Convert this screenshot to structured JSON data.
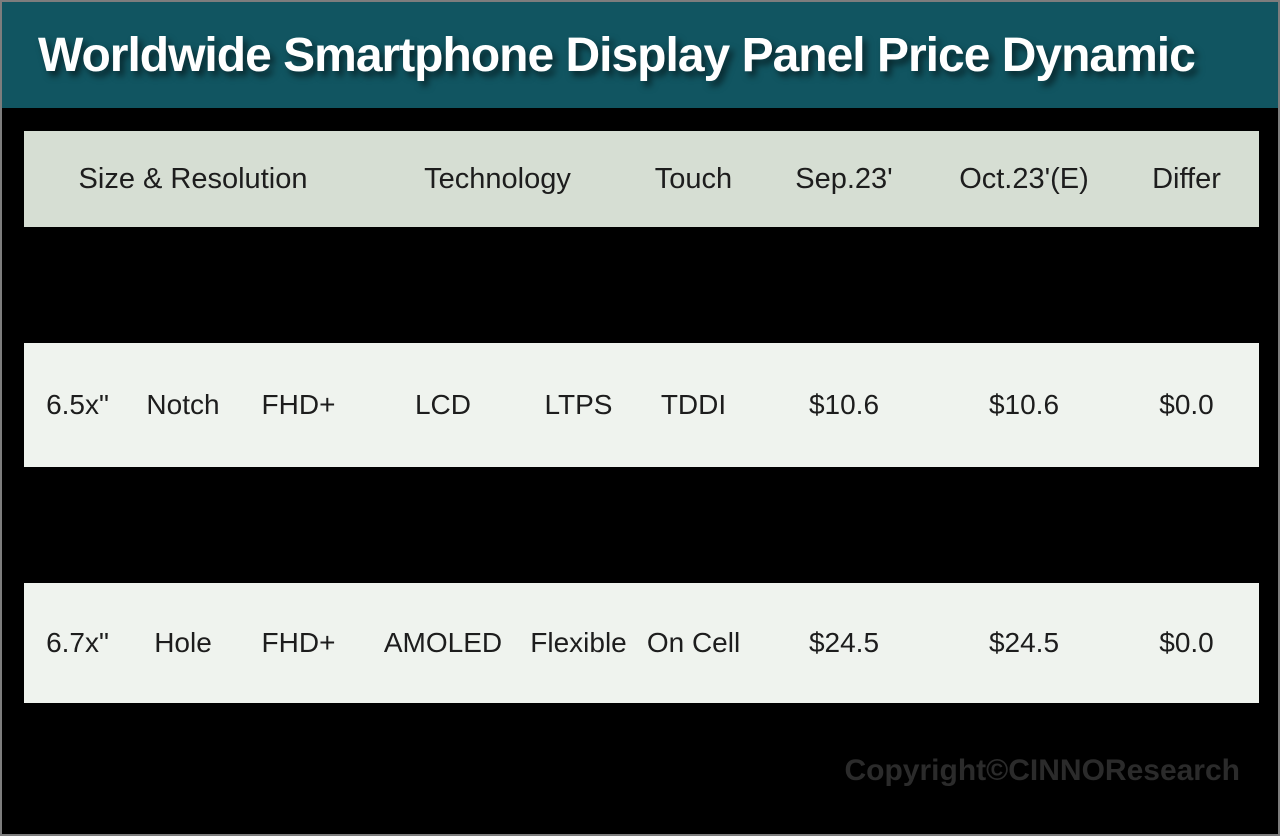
{
  "banner": {
    "title": "Worldwide Smartphone Display Panel Price Dynamic"
  },
  "table": {
    "header": {
      "columns": [
        {
          "label": "Size & Resolution"
        },
        {
          "label": "Technology"
        },
        {
          "label": "Touch"
        },
        {
          "label": "Sep.23'"
        },
        {
          "label": "Oct.23'(E)"
        },
        {
          "label": "Differ"
        }
      ]
    },
    "rows": [
      {
        "cells": [
          "6.5x\"",
          "Notch",
          "FHD+",
          "LCD",
          "LTPS",
          "TDDI",
          "$10.6",
          "$10.6",
          "$0.0"
        ]
      },
      {
        "cells": [
          "6.7x\"",
          "Hole",
          "FHD+",
          "AMOLED",
          "Flexible",
          "On Cell",
          "$24.5",
          "$24.5",
          "$0.0"
        ]
      }
    ]
  },
  "footer": {
    "copyright": "Copyright©CINNOResearch"
  },
  "colors": {
    "accent_teal": "#115561",
    "canvas_bg": "#000000",
    "border_gray": "#7d7d7d",
    "header_row_bg": "#d6ded3",
    "data_row_bg": "#eff3ee",
    "table_text": "#1d1d1d",
    "title_text": "#ffffff",
    "copyright_text": "#2b2b2b"
  },
  "chart_data": {
    "type": "table",
    "title": "Worldwide Smartphone Display Panel Price Dynamic",
    "columns": [
      "Size & Resolution",
      "Technology",
      "Touch",
      "Sep.23'",
      "Oct.23'(E)",
      "Differ"
    ],
    "rows": [
      {
        "size": "6.5x\"",
        "cutout": "Notch",
        "resolution": "FHD+",
        "panel": "LCD",
        "backplane": "LTPS",
        "touch": "TDDI",
        "sep_23": 10.6,
        "oct_23_e": 10.6,
        "differ": 0.0
      },
      {
        "size": "6.7x\"",
        "cutout": "Hole",
        "resolution": "FHD+",
        "panel": "AMOLED",
        "backplane": "Flexible",
        "touch": "On Cell",
        "sep_23": 24.5,
        "oct_23_e": 24.5,
        "differ": 0.0
      }
    ],
    "value_unit": "USD",
    "source": "Copyright©CINNOResearch"
  }
}
